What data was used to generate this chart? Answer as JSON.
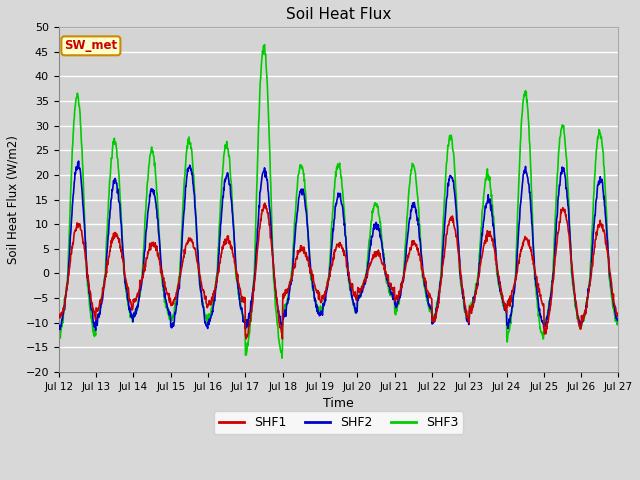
{
  "title": "Soil Heat Flux",
  "ylabel": "Soil Heat Flux (W/m2)",
  "xlabel": "Time",
  "ylim": [
    -20,
    50
  ],
  "yticks": [
    -20,
    -15,
    -10,
    -5,
    0,
    5,
    10,
    15,
    20,
    25,
    30,
    35,
    40,
    45,
    50
  ],
  "line_colors": {
    "SHF1": "#cc0000",
    "SHF2": "#0000cc",
    "SHF3": "#00cc00"
  },
  "line_widths": {
    "SHF1": 1.2,
    "SHF2": 1.2,
    "SHF3": 1.2
  },
  "background_color": "#d8d8d8",
  "plot_bg_color": "#d4d4d4",
  "grid_color": "#ffffff",
  "annotation_text": "SW_met",
  "annotation_bg": "#ffffcc",
  "annotation_border": "#cc8800",
  "annotation_text_color": "#cc0000",
  "n_days": 15,
  "start_day": 12,
  "legend_entries": [
    "SHF1",
    "SHF2",
    "SHF3"
  ],
  "day_amplitudes_shf1": [
    10,
    8,
    6,
    7,
    7,
    14,
    5,
    6,
    4,
    6,
    11,
    8,
    7,
    13,
    10
  ],
  "day_amplitudes_shf2": [
    22,
    19,
    17,
    22,
    20,
    21,
    17,
    16,
    10,
    14,
    20,
    15,
    21,
    21,
    19
  ],
  "day_amplitudes_shf3": [
    36,
    27,
    25,
    27,
    26,
    46,
    22,
    22,
    14,
    22,
    28,
    20,
    37,
    30,
    29
  ],
  "shf1_min": -10,
  "shf2_min": -10,
  "shf3_min": -15,
  "phase_shf1": 0.27,
  "phase_shf2": 0.26,
  "phase_shf3": 0.245
}
